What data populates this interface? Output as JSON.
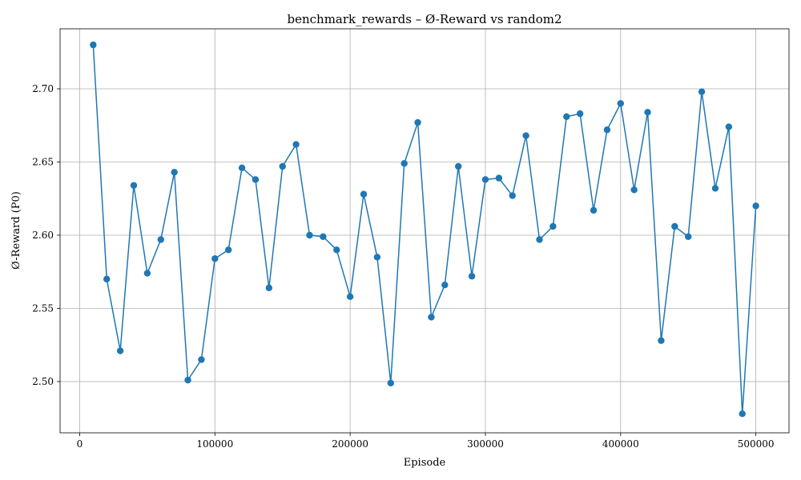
{
  "chart_data": {
    "type": "line",
    "title": "benchmark_rewards – Ø-Reward vs random2",
    "xlabel": "Episode",
    "ylabel": "Ø-Reward (P0)",
    "xlim": [
      -14500,
      524500
    ],
    "ylim": [
      2.465,
      2.741
    ],
    "xticks": [
      0,
      100000,
      200000,
      300000,
      400000,
      500000
    ],
    "xtick_labels": [
      "0",
      "100000",
      "200000",
      "300000",
      "400000",
      "500000"
    ],
    "yticks": [
      2.5,
      2.55,
      2.6,
      2.65,
      2.7
    ],
    "ytick_labels": [
      "2.50",
      "2.55",
      "2.60",
      "2.65",
      "2.70"
    ],
    "grid": true,
    "color": "#1f77b4",
    "marker": "circle",
    "series": [
      {
        "x": [
          10000,
          20000,
          30000,
          40000,
          50000,
          60000,
          70000,
          80000,
          90000,
          100000,
          110000,
          120000,
          130000,
          140000,
          150000,
          160000,
          170000,
          180000,
          190000,
          200000,
          210000,
          220000,
          230000,
          240000,
          250000,
          260000,
          270000,
          280000,
          290000,
          300000,
          310000,
          320000,
          330000,
          340000,
          350000,
          360000,
          370000,
          380000,
          390000,
          400000,
          410000,
          420000,
          430000,
          440000,
          450000,
          460000,
          470000,
          480000,
          490000,
          500000
        ],
        "values": [
          2.73,
          2.57,
          2.521,
          2.634,
          2.574,
          2.597,
          2.643,
          2.501,
          2.515,
          2.584,
          2.59,
          2.646,
          2.638,
          2.564,
          2.647,
          2.662,
          2.6,
          2.599,
          2.59,
          2.558,
          2.628,
          2.585,
          2.499,
          2.649,
          2.677,
          2.544,
          2.566,
          2.647,
          2.572,
          2.638,
          2.639,
          2.627,
          2.668,
          2.597,
          2.606,
          2.681,
          2.683,
          2.617,
          2.672,
          2.69,
          2.631,
          2.684,
          2.528,
          2.606,
          2.599,
          2.698,
          2.632,
          2.674,
          2.478,
          2.62
        ]
      }
    ]
  }
}
